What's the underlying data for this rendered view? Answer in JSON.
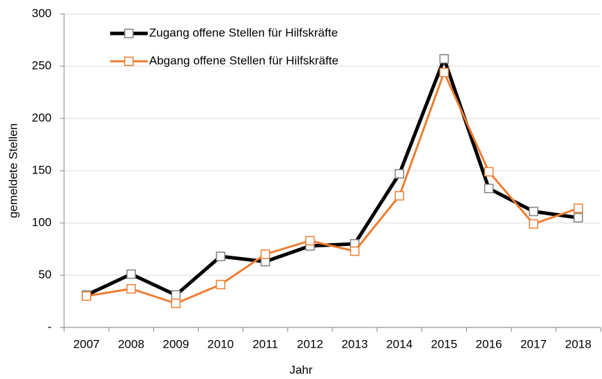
{
  "chart_data": {
    "type": "line",
    "x_label": "Jahr",
    "y_label": "gemeldete Stellen",
    "categories": [
      "2007",
      "2008",
      "2009",
      "2010",
      "2011",
      "2012",
      "2013",
      "2014",
      "2015",
      "2016",
      "2017",
      "2018"
    ],
    "series": [
      {
        "name": "Zugang offene Stellen für Hilfskräfte",
        "color": "#000000",
        "marker_stroke": "#7f7f7f",
        "values": [
          31,
          51,
          31,
          68,
          63,
          78,
          80,
          147,
          257,
          133,
          111,
          105
        ]
      },
      {
        "name": "Abgang offene Stellen für Hilfskräfte",
        "color": "#ed7d31",
        "marker_stroke": "#ed7d31",
        "values": [
          30,
          37,
          23,
          41,
          70,
          83,
          73,
          126,
          244,
          149,
          99,
          114
        ]
      }
    ],
    "ylim": [
      0,
      300
    ],
    "yticks": [
      {
        "value": 0,
        "label": "-"
      },
      50,
      100,
      150,
      200,
      250,
      300
    ],
    "grid": true,
    "legend": "top-left"
  }
}
